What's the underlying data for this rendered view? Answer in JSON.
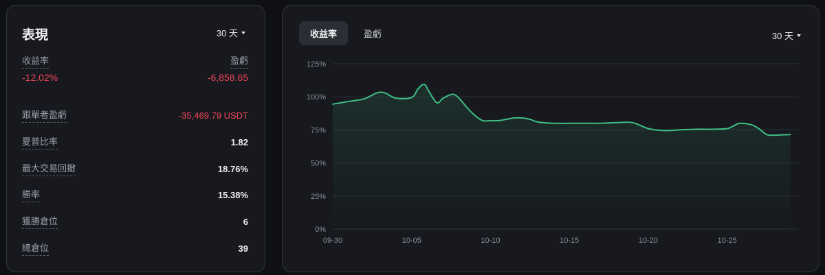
{
  "left": {
    "title": "表現",
    "period": "30 天",
    "summary": {
      "return_label": "收益率",
      "return_value": "-12.02%",
      "pnl_label": "盈虧",
      "pnl_value": "-6,858.65"
    },
    "metrics": [
      {
        "label": "跟單者盈虧",
        "value": "-35,469.79 USDT",
        "negative": true
      },
      {
        "label": "夏普比率",
        "value": "1.82",
        "negative": false
      },
      {
        "label": "最大交易回撤",
        "value": "18.76%",
        "negative": false
      },
      {
        "label": "勝率",
        "value": "15.38%",
        "negative": false
      },
      {
        "label": "獲勝倉位",
        "value": "6",
        "negative": false
      },
      {
        "label": "總倉位",
        "value": "39",
        "negative": false
      }
    ]
  },
  "right": {
    "tabs": [
      {
        "label": "收益率",
        "active": true
      },
      {
        "label": "盈虧",
        "active": false
      }
    ],
    "period": "30 天"
  },
  "colors": {
    "line": "#3fbf86",
    "negative": "#f0455a",
    "grid": "#2e3138"
  },
  "chart_data": {
    "type": "area",
    "y_tick_labels": [
      "0%",
      "25%",
      "50%",
      "75%",
      "100%",
      "125%"
    ],
    "ylim": [
      0,
      125
    ],
    "grid": true,
    "x_tick_labels": [
      "09-30",
      "10-05",
      "10-10",
      "10-15",
      "10-20",
      "10-25"
    ],
    "x_days": [
      0,
      1,
      2,
      2.8,
      3.3,
      4,
      5,
      5.4,
      5.8,
      6.1,
      6.6,
      7,
      7.6,
      8,
      8.5,
      9,
      9.5,
      10,
      10.5,
      11,
      11.5,
      12,
      12.5,
      13,
      14,
      15,
      16,
      17,
      18,
      19,
      20,
      21,
      22,
      23,
      24,
      25,
      25.4,
      25.8,
      26.5,
      27,
      27.5,
      28,
      29
    ],
    "values": [
      94.5,
      96.5,
      98.5,
      103,
      103,
      99,
      99.5,
      106,
      109.5,
      104,
      95.5,
      99,
      102,
      99,
      92,
      86,
      82,
      82,
      82,
      83,
      84,
      84,
      83,
      81,
      80,
      80,
      80,
      80,
      80.5,
      80.5,
      76,
      74.5,
      75,
      75.5,
      75.5,
      76,
      78,
      80,
      79,
      76,
      71.5,
      71,
      71.5
    ]
  }
}
